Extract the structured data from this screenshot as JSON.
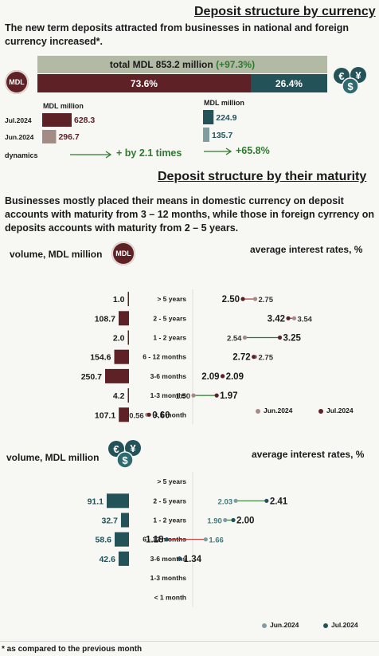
{
  "section1": {
    "title": "Deposit structure by currency",
    "intro": "The new term deposits attracted from businesses in national and foreign currency increased*.",
    "total_text": "total MDL 853.2 million",
    "total_change": "(+97.3%)",
    "mdl_share": "73.6%",
    "fx_share": "26.4%",
    "mdl_badge": "MDL",
    "unit_label": "MDL million",
    "dynamics_label": "dynamics",
    "mdl_dynamics": "+ by 2.1 times",
    "fx_dynamics": "+65.8%",
    "colors": {
      "mdl_dark": "#5e2226",
      "mdl_light": "#a58b86",
      "fx_dark": "#235258",
      "fx_light": "#7f9ea0",
      "total_bg": "#b2b9a4",
      "green": "#2f7a2f"
    }
  },
  "chart_data": [
    {
      "type": "bar",
      "id": "currency_mdl",
      "unit": "MDL million",
      "categories": [
        "Jul.2024",
        "Jun.2024"
      ],
      "values": [
        628.3,
        296.7
      ]
    },
    {
      "type": "bar",
      "id": "currency_fx",
      "unit": "MDL million",
      "categories": [
        "Jul.2024",
        "Jun.2024"
      ],
      "values": [
        224.9,
        135.7
      ]
    },
    {
      "type": "bar",
      "id": "maturity_mdl_volume",
      "ylabel": "volume, MDL million",
      "categories": [
        "> 5 years",
        "2 - 5 years",
        "1 - 2 years",
        "6 - 12 months",
        "3-6 months",
        "1-3 months",
        "< 1 month"
      ],
      "values": [
        1.0,
        108.7,
        2.0,
        154.6,
        250.7,
        4.2,
        107.1
      ]
    },
    {
      "type": "scatter",
      "id": "maturity_mdl_rates",
      "title": "average interest rates, %",
      "categories": [
        "> 5 years",
        "2 - 5 years",
        "1 - 2 years",
        "6 - 12 months",
        "3-6 months",
        "1-3 months",
        "< 1 month"
      ],
      "series": [
        {
          "name": "Jun.2024",
          "values": [
            2.75,
            3.54,
            2.54,
            2.75,
            2.09,
            1.5,
            0.56
          ]
        },
        {
          "name": "Jul.2024",
          "values": [
            2.5,
            3.42,
            3.25,
            2.72,
            2.09,
            1.97,
            0.6
          ]
        }
      ],
      "legend": "bottom-right"
    },
    {
      "type": "bar",
      "id": "maturity_fx_volume",
      "ylabel": "volume, MDL million",
      "categories": [
        "> 5 years",
        "2 - 5 years",
        "1 - 2 years",
        "6 - 12 months",
        "3-6 months",
        "1-3 months",
        "< 1 month"
      ],
      "values": [
        null,
        91.1,
        32.7,
        58.6,
        42.6,
        null,
        null
      ]
    },
    {
      "type": "scatter",
      "id": "maturity_fx_rates",
      "title": "average interest rates, %",
      "categories": [
        "> 5 years",
        "2 - 5 years",
        "1 - 2 years",
        "6 - 12 months",
        "3-6 months",
        "1-3 months",
        "< 1 month"
      ],
      "series": [
        {
          "name": "Jun.2024",
          "values": [
            null,
            2.03,
            1.9,
            1.66,
            null,
            null,
            null
          ]
        },
        {
          "name": "Jul.2024",
          "values": [
            null,
            2.41,
            2.0,
            1.18,
            1.34,
            null,
            null
          ]
        }
      ],
      "legend": "bottom-right"
    }
  ],
  "section2": {
    "title": "Deposit structure by their maturity",
    "intro": "Businesses mostly placed their means in domestic currency on deposit accounts with maturity from 3 – 12 months, while those in foreign cyrrency on deposits accounts with maturity from 2 – 5 years.",
    "volume_label": "volume, MDL million",
    "rates_label": "average interest rates, %",
    "mdl_badge": "MDL",
    "legend_jun": "Jun.2024",
    "legend_jul": "Jul.2024"
  },
  "footnote": "* as compared to the previous month"
}
